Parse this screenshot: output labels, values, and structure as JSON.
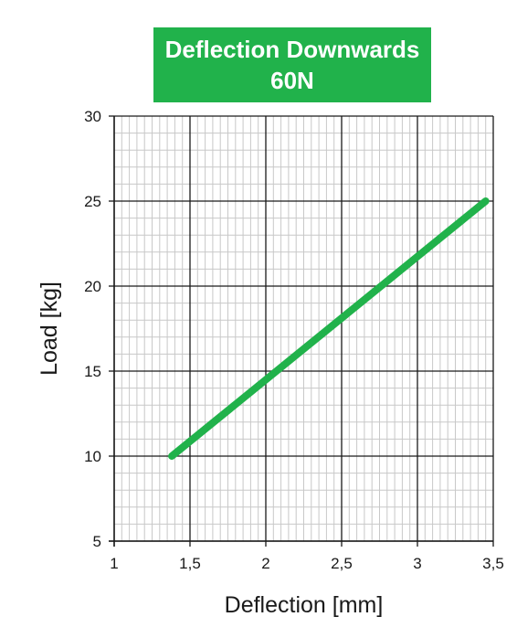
{
  "chart_data": {
    "type": "line",
    "title": "Deflection Downwards",
    "subtitle": "60N",
    "xlabel": "Deflection [mm]",
    "ylabel": "Load [kg]",
    "xlim": [
      1,
      3.5
    ],
    "ylim": [
      5,
      30
    ],
    "xticks": [
      1,
      1.5,
      2,
      2.5,
      3,
      3.5
    ],
    "xtick_labels": [
      "1",
      "1,5",
      "2",
      "2,5",
      "3",
      "3,5"
    ],
    "yticks": [
      5,
      10,
      15,
      20,
      25,
      30
    ],
    "ytick_labels": [
      "5",
      "10",
      "15",
      "20",
      "25",
      "30"
    ],
    "grid": true,
    "series": [
      {
        "color": "#21b24b",
        "x": [
          1.38,
          3.45
        ],
        "y": [
          10,
          25
        ]
      }
    ],
    "colors": {
      "title_background": "#21b24b",
      "title_text": "#ffffff",
      "major_grid": "#1a1a1a",
      "minor_grid": "#c8c8c8"
    }
  }
}
